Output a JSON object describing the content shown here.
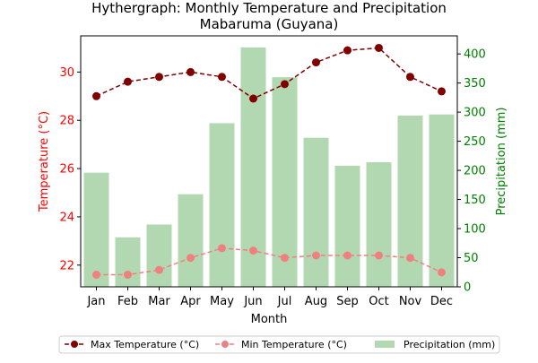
{
  "chart_data": {
    "type": "bar+line",
    "title_line1": "Hythergraph: Monthly Temperature and Precipitation",
    "title_line2": "Mabaruma (Guyana)",
    "xlabel": "Month",
    "ylabel_left": "Temperature (°C)",
    "ylabel_right": "Precipitation (mm)",
    "categories": [
      "Jan",
      "Feb",
      "Mar",
      "Apr",
      "May",
      "Jun",
      "Jul",
      "Aug",
      "Sep",
      "Oct",
      "Nov",
      "Dec"
    ],
    "y_left_lim": [
      21.1,
      31.5
    ],
    "y_left_ticks": [
      22,
      24,
      26,
      28,
      30
    ],
    "y_right_lim": [
      0,
      431
    ],
    "y_right_ticks": [
      0,
      50,
      100,
      150,
      200,
      250,
      300,
      350,
      400
    ],
    "series": [
      {
        "name": "Max Temperature (°C)",
        "kind": "line",
        "axis": "left",
        "color": "#800000",
        "values": [
          29.0,
          29.6,
          29.8,
          30.0,
          29.8,
          28.9,
          29.5,
          30.4,
          30.9,
          31.0,
          29.8,
          29.2
        ]
      },
      {
        "name": "Min Temperature (°C)",
        "kind": "line",
        "axis": "left",
        "color": "#f08080",
        "values": [
          21.6,
          21.6,
          21.8,
          22.3,
          22.7,
          22.6,
          22.3,
          22.4,
          22.4,
          22.4,
          22.3,
          21.7
        ]
      },
      {
        "name": "Precipitation (mm)",
        "kind": "bar",
        "axis": "right",
        "color": "#b2d8b2",
        "values": [
          196,
          85,
          107,
          159,
          281,
          411,
          360,
          256,
          208,
          214,
          294,
          296
        ]
      }
    ],
    "legend_position": "bottom"
  }
}
